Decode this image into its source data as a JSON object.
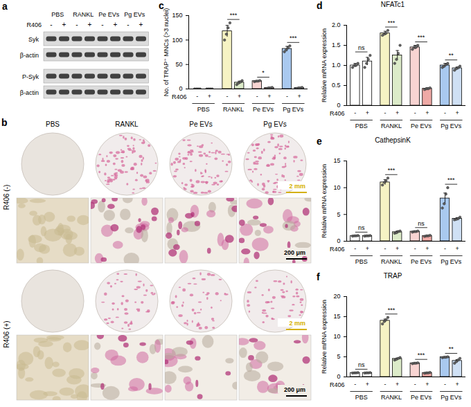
{
  "blot": {
    "panel_label": "a",
    "treatment": "R406",
    "groups": [
      "PBS",
      "RANKL",
      "Pe EVs",
      "Pg EVs"
    ],
    "signs": [
      "-",
      "+"
    ],
    "rows": [
      "Syk",
      "β-actin",
      "P-Syk",
      "β-actin"
    ]
  },
  "images": {
    "panel_label": "b",
    "columns": [
      "PBS",
      "RANKL",
      "Pe EVs",
      "Pg EVs"
    ],
    "rows": [
      "R406 (-)",
      "R406 (+)"
    ],
    "scale_bars": [
      "2 mm",
      "200 μm"
    ]
  },
  "chart_data": [
    {
      "panel_label": "c",
      "type": "bar",
      "y_label": "No. of TRAP⁺ MNCs (>3 nuclei)",
      "x_label": "R406",
      "groups": [
        "PBS",
        "RANKL",
        "Pe EVs",
        "Pg EVs"
      ],
      "categories": [
        "-",
        "+",
        "-",
        "+",
        "-",
        "+",
        "-",
        "+"
      ],
      "values": [
        0,
        0,
        118,
        13,
        16,
        2,
        82,
        2
      ],
      "errors": [
        0,
        0,
        12,
        3,
        1,
        1,
        5,
        1
      ],
      "points": [
        [
          0,
          0,
          0,
          0
        ],
        [
          0,
          0,
          0,
          0
        ],
        [
          100,
          112,
          125,
          135
        ],
        [
          9,
          12,
          14,
          17
        ],
        [
          15,
          16,
          16,
          17
        ],
        [
          1,
          2,
          2,
          3
        ],
        [
          76,
          80,
          84,
          88
        ],
        [
          1,
          2,
          2,
          3
        ]
      ],
      "significance": [
        null,
        "***",
        "*",
        "***"
      ],
      "colors": [
        "#ffffff",
        "#ffffff",
        "#f6f3c4",
        "#dcebc9",
        "#f8d4d2",
        "#efaaa6",
        "#a9c9ef",
        "#cfe0f4"
      ],
      "ylim": [
        0,
        150
      ],
      "yticks": [
        0,
        50,
        100,
        150
      ]
    },
    {
      "panel_label": "d",
      "type": "bar",
      "title": "NFATc1",
      "y_label": "Relative mRNA expression",
      "x_label": "R406",
      "groups": [
        "PBS",
        "RANKL",
        "Pe EVs",
        "Pg EVs"
      ],
      "categories": [
        "-",
        "+",
        "-",
        "+",
        "-",
        "+",
        "-",
        "+"
      ],
      "values": [
        1.0,
        1.1,
        1.8,
        1.25,
        1.45,
        0.42,
        1.0,
        0.93
      ],
      "errors": [
        0.05,
        0.1,
        0.05,
        0.12,
        0.05,
        0.02,
        0.05,
        0.03
      ],
      "points": [
        [
          0.95,
          1.0,
          1.0,
          1.05
        ],
        [
          0.95,
          1.05,
          1.15,
          1.25
        ],
        [
          1.75,
          1.78,
          1.8,
          1.87
        ],
        [
          1.05,
          1.15,
          1.3,
          1.5
        ],
        [
          1.4,
          1.45,
          1.45,
          1.5
        ],
        [
          0.4,
          0.42,
          0.42,
          0.44
        ],
        [
          0.95,
          0.98,
          1.02,
          1.05
        ],
        [
          0.88,
          0.92,
          0.94,
          0.98
        ]
      ],
      "significance": [
        "ns",
        "***",
        "***",
        "**"
      ],
      "colors": [
        "#ffffff",
        "#ffffff",
        "#f6f3c4",
        "#dcebc9",
        "#f8d4d2",
        "#efaaa6",
        "#a9c9ef",
        "#cfe0f4"
      ],
      "ylim": [
        0,
        2
      ],
      "yticks": [
        0,
        0.5,
        {
          "value": 1,
          "label": "1.0"
        },
        1.5,
        {
          "value": 2,
          "label": "2.0"
        }
      ]
    },
    {
      "panel_label": "e",
      "type": "bar",
      "title": "CathepsinK",
      "y_label": "Relative mRNA expression",
      "x_label": "R406",
      "groups": [
        "PBS",
        "RANKL",
        "Pe EVs",
        "Pg EVs"
      ],
      "categories": [
        "-",
        "+",
        "-",
        "+",
        "-",
        "+",
        "-",
        "+"
      ],
      "values": [
        1,
        1,
        11,
        1.7,
        1.8,
        1.0,
        8,
        4.2
      ],
      "errors": [
        0.05,
        0.05,
        0.5,
        0.2,
        0.1,
        0.05,
        1.0,
        0.2
      ],
      "points": [
        [
          0.95,
          1,
          1,
          1.05
        ],
        [
          0.95,
          1,
          1,
          1.05
        ],
        [
          10.5,
          11,
          11.3,
          11.8
        ],
        [
          1.5,
          1.6,
          1.8,
          1.9
        ],
        [
          1.7,
          1.8,
          1.8,
          1.9
        ],
        [
          0.9,
          1,
          1,
          1.1
        ],
        [
          6.2,
          7,
          8.8,
          10
        ],
        [
          4,
          4.1,
          4.2,
          4.5
        ]
      ],
      "significance": [
        "ns",
        "***",
        "ns",
        "***"
      ],
      "colors": [
        "#ffffff",
        "#ffffff",
        "#f6f3c4",
        "#dcebc9",
        "#f8d4d2",
        "#efaaa6",
        "#a9c9ef",
        "#cfe0f4"
      ],
      "ylim": [
        0,
        15
      ],
      "yticks": [
        0,
        5,
        10,
        15
      ]
    },
    {
      "panel_label": "f",
      "type": "bar",
      "title": "TRAP",
      "y_label": "Relative mRNA expression",
      "x_label": "R406",
      "groups": [
        "PBS",
        "RANKL",
        "Pe EVs",
        "Pg EVs"
      ],
      "categories": [
        "-",
        "+",
        "-",
        "+",
        "-",
        "+",
        "-",
        "+"
      ],
      "values": [
        1,
        1,
        14,
        4.5,
        3.4,
        1.0,
        4.9,
        4.0
      ],
      "errors": [
        0.05,
        0.05,
        0.4,
        0.2,
        0.1,
        0.05,
        0.1,
        0.3
      ],
      "points": [
        [
          0.95,
          1,
          1,
          1.05
        ],
        [
          0.95,
          1,
          1,
          1.05
        ],
        [
          13.2,
          13.8,
          14.2,
          14.8
        ],
        [
          4.2,
          4.4,
          4.6,
          4.8
        ],
        [
          3.3,
          3.4,
          3.4,
          3.5
        ],
        [
          0.9,
          1,
          1,
          1.1
        ],
        [
          4.8,
          4.9,
          4.9,
          5.0
        ],
        [
          3.4,
          3.8,
          4.2,
          4.6
        ]
      ],
      "significance": [
        "ns",
        "***",
        "***",
        "**"
      ],
      "colors": [
        "#ffffff",
        "#ffffff",
        "#f6f3c4",
        "#dcebc9",
        "#f8d4d2",
        "#efaaa6",
        "#a9c9ef",
        "#cfe0f4"
      ],
      "ylim": [
        0,
        20
      ],
      "yticks": [
        0,
        5,
        10,
        15,
        20
      ]
    }
  ]
}
